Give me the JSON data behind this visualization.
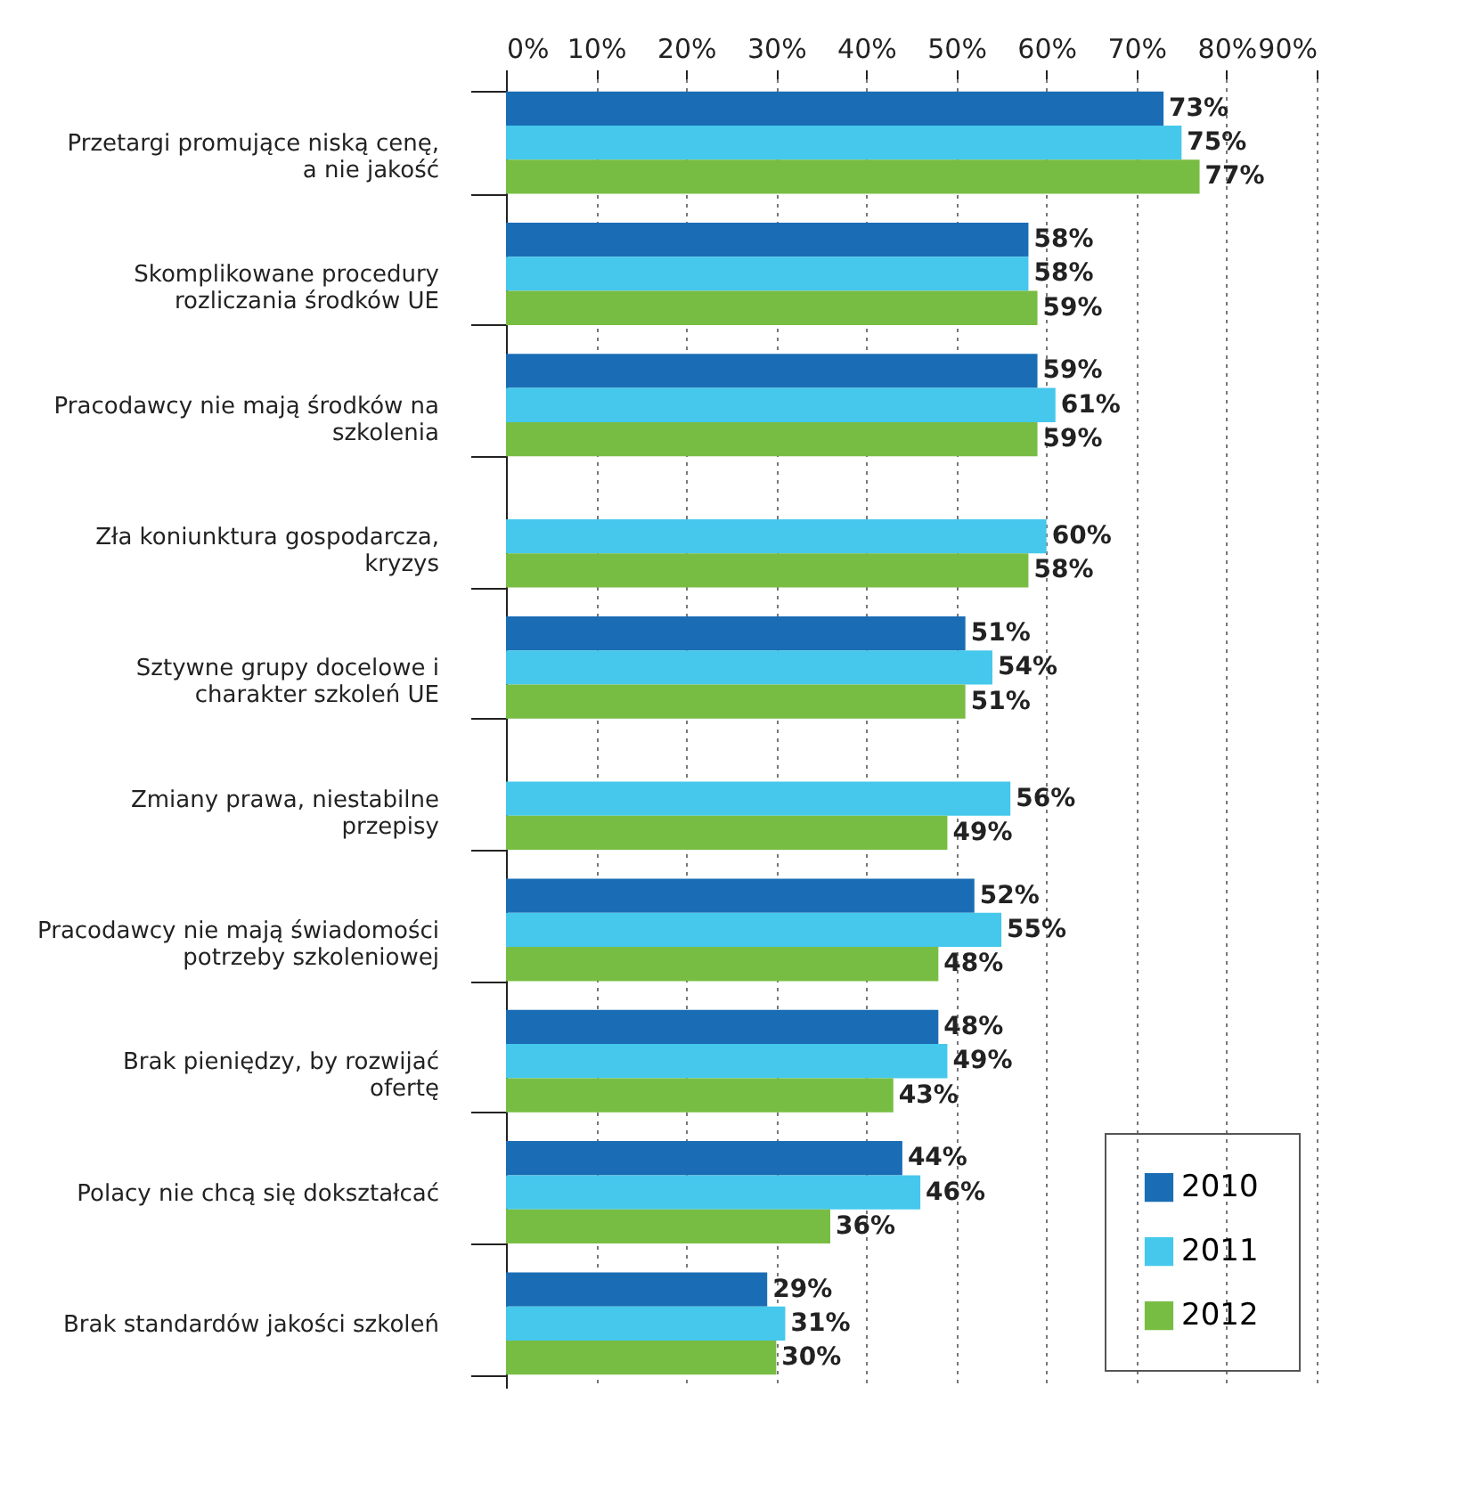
{
  "chart_data": {
    "type": "bar",
    "orientation": "horizontal",
    "categories": [
      "Przetargi promujące niską cenę, a nie jakość",
      "Skomplikowane procedury rozliczania środków UE",
      "Pracodawcy nie mają środków na szkolenia",
      "Zła koniunktura gospodarcza, kryzys",
      "Sztywne grupy docelowe i charakter szkoleń UE",
      "Zmiany prawa, niestabilne przepisy",
      "Pracodawcy nie mają świadomości potrzeby szkoleniowej",
      "Brak pieniędzy, by rozwijać ofertę",
      "Polacy nie chcą się dokształcać",
      "Brak standardów jakości szkoleń"
    ],
    "series": [
      {
        "name": "2010",
        "color": "#1a6db5",
        "values": [
          73,
          58,
          59,
          null,
          51,
          null,
          52,
          48,
          44,
          29
        ],
        "value_labels": [
          "73%",
          "58%",
          "59%",
          null,
          "51%",
          null,
          "52%",
          "48%",
          "44%",
          "29%"
        ]
      },
      {
        "name": "2011",
        "color": "#45c8ec",
        "values": [
          75,
          58,
          61,
          60,
          54,
          56,
          55,
          49,
          46,
          31
        ],
        "value_labels": [
          "75%",
          "58%",
          "61%",
          "60%",
          "54%",
          "56%",
          "55%",
          "49%",
          "46%",
          "31%"
        ]
      },
      {
        "name": "2012",
        "color": "#78bd43",
        "values": [
          77,
          59,
          59,
          58,
          51,
          49,
          48,
          43,
          36,
          30
        ],
        "value_labels": [
          "77%",
          "59%",
          "59%",
          "58%",
          "51%",
          "49%",
          "48%",
          "43%",
          "36%",
          "30%"
        ]
      }
    ],
    "xlim": [
      0,
      90
    ],
    "xticks": [
      {
        "value": 0,
        "label": "0%"
      },
      {
        "value": 10,
        "label": "10%"
      },
      {
        "value": 20,
        "label": "20%"
      },
      {
        "value": 30,
        "label": "30%"
      },
      {
        "value": 40,
        "label": "40%"
      },
      {
        "value": 50,
        "label": "50%"
      },
      {
        "value": 60,
        "label": "60%"
      },
      {
        "value": 70,
        "label": "70%"
      },
      {
        "value": 80,
        "label": "80%"
      },
      {
        "value": 90,
        "label": "90%"
      }
    ],
    "grid": "x",
    "legend": "bottom right"
  }
}
